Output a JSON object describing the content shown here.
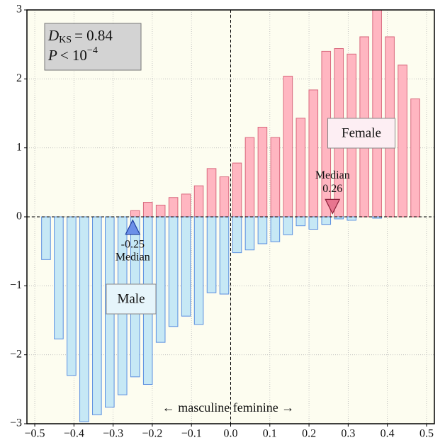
{
  "chart_data": {
    "type": "mirrored_histogram",
    "bins": [
      -0.4875,
      -0.455,
      -0.4225,
      -0.39,
      -0.3575,
      -0.325,
      -0.2925,
      -0.26,
      -0.2275,
      -0.195,
      -0.1625,
      -0.13,
      -0.0975,
      -0.065,
      -0.0325,
      0,
      0.0325,
      0.065,
      0.0975,
      0.13,
      0.1625,
      0.195,
      0.2275,
      0.26,
      0.2925,
      0.325,
      0.3575,
      0.39,
      0.4225,
      0.455,
      0.4875
    ],
    "series": [
      {
        "name": "Female",
        "color": "#ffb6c1",
        "edgecolor": "#d9697e",
        "values": [
          0,
          0,
          0,
          0,
          0,
          0,
          0,
          0.09,
          0.21,
          0.17,
          0.28,
          0.33,
          0.45,
          0.7,
          0.58,
          0.78,
          1.15,
          1.3,
          1.15,
          2.04,
          1.43,
          1.84,
          2.4,
          2.44,
          2.36,
          2.61,
          3.0,
          2.61,
          2.2,
          1.71
        ]
      },
      {
        "name": "Male",
        "color": "#c6e8f5",
        "edgecolor": "#5b8fe0",
        "values": [
          -0.62,
          -1.77,
          -2.3,
          -2.97,
          -2.87,
          -2.76,
          -2.58,
          -2.32,
          -2.43,
          -1.82,
          -1.59,
          -1.44,
          -1.56,
          -1.1,
          -1.12,
          -0.52,
          -0.48,
          -0.39,
          -0.36,
          -0.26,
          -0.13,
          -0.18,
          -0.11,
          -0.03,
          -0.05,
          0,
          -0.02,
          0,
          0,
          0
        ]
      }
    ],
    "medians": [
      {
        "label": "Median",
        "value": -0.25,
        "color": "#6b8fe8",
        "edgecolor": "#1f3fa0"
      },
      {
        "label": "Median",
        "value": 0.26,
        "color": "#e8758f",
        "edgecolor": "#8a1f38"
      }
    ],
    "stats": {
      "d": {
        "symbol": "D",
        "subscript": "KS",
        "text": "= 0.84"
      },
      "p": {
        "symbol": "P",
        "text": "< 10",
        "superscript": "−4"
      }
    },
    "annotation": "← masculine feminine →",
    "xlim": [
      -0.52,
      0.52
    ],
    "ylim": [
      -3,
      3
    ],
    "xticks": [
      {
        "value": -0.5,
        "label": "−0.5"
      },
      {
        "value": -0.4,
        "label": "−0.4"
      },
      {
        "value": -0.3,
        "label": "−0.3"
      },
      {
        "value": -0.2,
        "label": "−0.2"
      },
      {
        "value": -0.1,
        "label": "−0.1"
      },
      {
        "value": 0,
        "label": "0.0"
      },
      0.1,
      0.2,
      0.3,
      0.4,
      0.5
    ],
    "yticks": [
      {
        "value": -3,
        "label": "−3"
      },
      {
        "value": -2,
        "label": "−2"
      },
      {
        "value": -1,
        "label": "−1"
      },
      0,
      1,
      2,
      3
    ],
    "grid": true,
    "background": "#fdfdf0"
  }
}
